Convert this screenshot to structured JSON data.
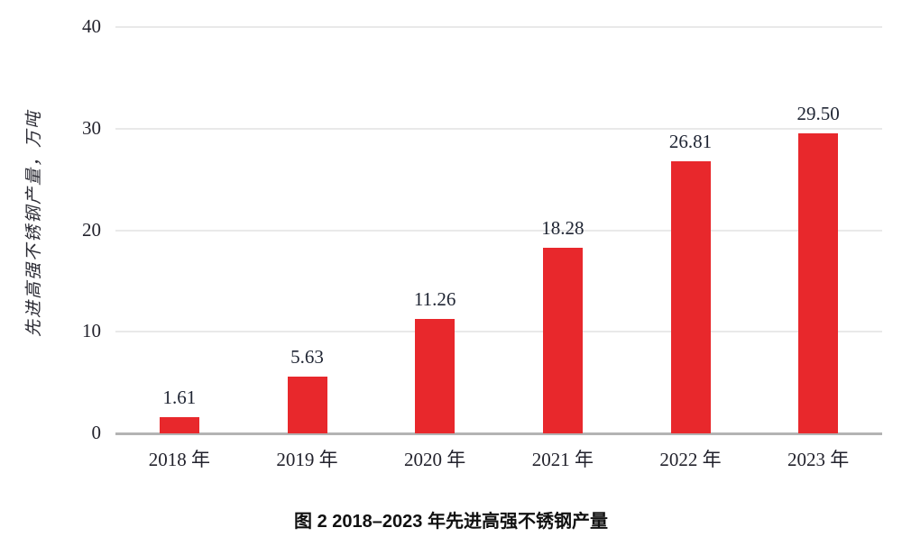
{
  "chart_data": {
    "type": "bar",
    "title": "图 2  2018–2023 年先进高强不锈钢产量",
    "xlabel": "",
    "ylabel": "先进高强不锈钢产量，万吨",
    "categories": [
      "2018 年",
      "2019 年",
      "2020 年",
      "2021 年",
      "2022 年",
      "2023 年"
    ],
    "values": [
      1.61,
      5.63,
      11.26,
      18.28,
      26.81,
      29.5
    ],
    "value_labels": [
      "1.61",
      "5.63",
      "11.26",
      "18.28",
      "26.81",
      "29.50"
    ],
    "ylim": [
      0,
      40
    ],
    "yticks": [
      0,
      10,
      20,
      30,
      40
    ],
    "grid": "horizontal-gridlines-on",
    "legend": "none",
    "colors": {
      "bar": "#e8282c",
      "value_label": "#202634",
      "tick_label": "#22222c",
      "gridline": "#e9e9e9",
      "axis_line": "#b3b3b3",
      "caption": "#111111"
    }
  }
}
